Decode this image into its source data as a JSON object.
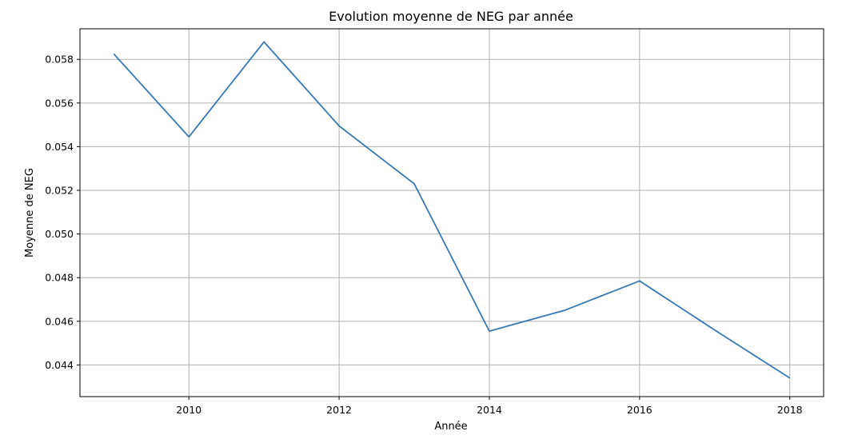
{
  "chart_data": {
    "type": "line",
    "title": "Evolution moyenne de NEG par année",
    "xlabel": "Année",
    "ylabel": "Moyenne de NEG",
    "x": [
      2009,
      2010,
      2011,
      2012,
      2013,
      2014,
      2015,
      2016,
      2017,
      2018
    ],
    "series": [
      {
        "values": [
          0.05825,
          0.05445,
          0.0588,
          0.05495,
          0.0523,
          0.04555,
          0.0465,
          0.04785,
          0.0456,
          0.0434
        ]
      }
    ],
    "xlim": [
      2008.55,
      2018.45
    ],
    "ylim": [
      0.04255,
      0.0594
    ],
    "x_ticks": [
      "2010",
      "2012",
      "2014",
      "2016",
      "2018"
    ],
    "y_ticks": [
      "0.044",
      "0.046",
      "0.048",
      "0.050",
      "0.052",
      "0.054",
      "0.056",
      "0.058"
    ],
    "grid": true,
    "colors": {
      "line": "#3a78b4",
      "grid": "#b0b0b0",
      "axes": "#000000"
    }
  }
}
